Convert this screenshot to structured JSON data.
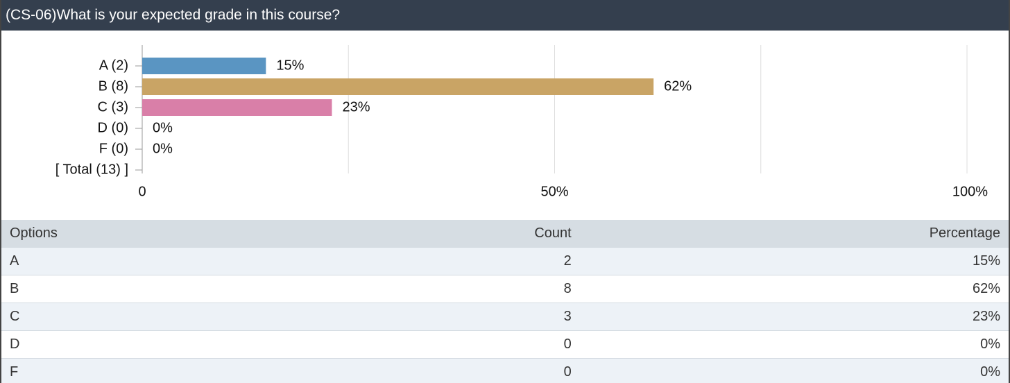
{
  "header": {
    "title": "(CS-06)What is your expected grade in this course?"
  },
  "chart_data": {
    "type": "barh",
    "categories": [
      "A (2)",
      "B (8)",
      "C (3)",
      "D (0)",
      "F (0)"
    ],
    "values": [
      15,
      62,
      23,
      0,
      0
    ],
    "value_labels": [
      "15%",
      "62%",
      "23%",
      "0%",
      "0%"
    ],
    "colors": [
      "#5a95c2",
      "#c9a465",
      "#d97fa8",
      "#7fb86b",
      "#9b8fc9"
    ],
    "total_label": "[ Total (13) ]",
    "xlim": [
      0,
      100
    ],
    "xticks": [
      0,
      {
        "value": 50,
        "label": "50%"
      },
      {
        "value": 100,
        "label": "100%"
      }
    ],
    "minor_xticks": [
      25,
      75
    ],
    "grid": true
  },
  "table": {
    "header": [
      "Options",
      "Count",
      "Percentage"
    ],
    "rows": [
      [
        "A",
        "2",
        "15%"
      ],
      [
        "B",
        "8",
        "62%"
      ],
      [
        "C",
        "3",
        "23%"
      ],
      [
        "D",
        "0",
        "0%"
      ],
      [
        "F",
        "0",
        "0%"
      ]
    ]
  }
}
